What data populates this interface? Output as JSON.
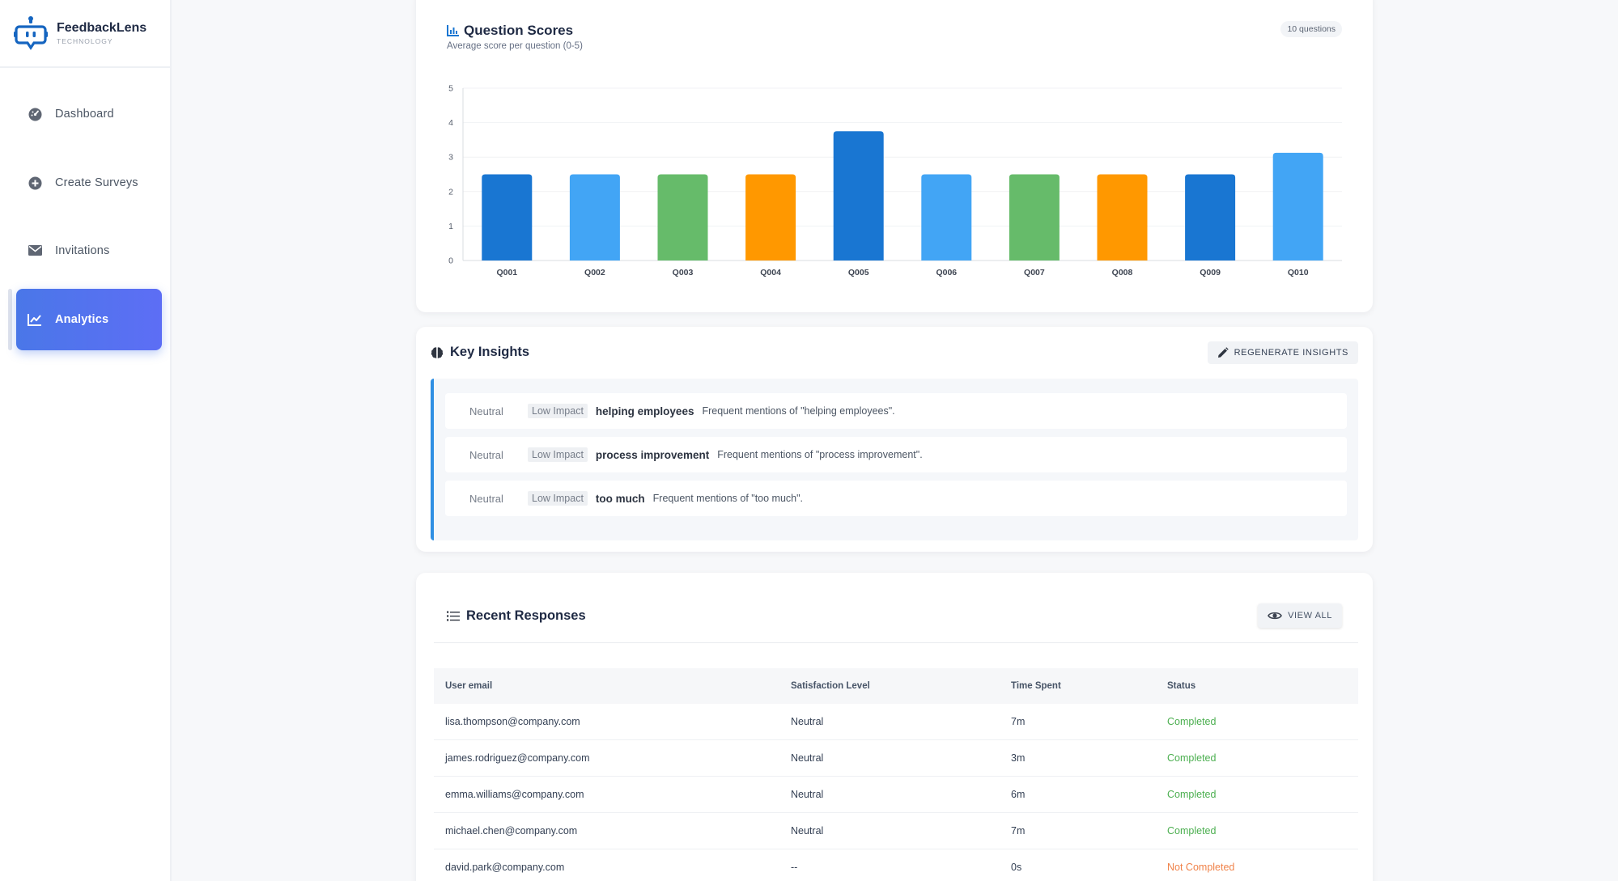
{
  "brand": {
    "name": "FeedbackLens",
    "sub": "TECHNOLOGY"
  },
  "nav": {
    "items": [
      {
        "label": "Dashboard",
        "icon": "dashboard-icon"
      },
      {
        "label": "Create Surveys",
        "icon": "add-circle-icon"
      },
      {
        "label": "Invitations",
        "icon": "envelope-icon"
      },
      {
        "label": "Analytics",
        "icon": "line-chart-icon",
        "active": true
      }
    ]
  },
  "scores": {
    "title": "Question Scores",
    "subtitle": "Average score per question (0-5)",
    "badge": "10 questions"
  },
  "chart_data": {
    "type": "bar",
    "categories": [
      "Q001",
      "Q002",
      "Q003",
      "Q004",
      "Q005",
      "Q006",
      "Q007",
      "Q008",
      "Q009",
      "Q010"
    ],
    "values": [
      2.5,
      2.5,
      2.5,
      2.5,
      3.75,
      2.5,
      2.5,
      2.5,
      2.5,
      3.125
    ],
    "colors": [
      "#1976d2",
      "#42a5f5",
      "#66bb6a",
      "#ff9800",
      "#1976d2",
      "#42a5f5",
      "#66bb6a",
      "#ff9800",
      "#1976d2",
      "#42a5f5"
    ],
    "ylim": [
      0,
      5
    ],
    "yticks": [
      0,
      1,
      2,
      3,
      4,
      5
    ],
    "grid": true,
    "title": "",
    "xlabel": "",
    "ylabel": ""
  },
  "insights": {
    "title": "Key Insights",
    "regenerate_label": "REGENERATE INSIGHTS",
    "items": [
      {
        "sentiment": "Neutral",
        "impact": "Low Impact",
        "topic": "helping employees",
        "description": "Frequent mentions of \"helping employees\"."
      },
      {
        "sentiment": "Neutral",
        "impact": "Low Impact",
        "topic": "process improvement",
        "description": "Frequent mentions of \"process improvement\"."
      },
      {
        "sentiment": "Neutral",
        "impact": "Low Impact",
        "topic": "too much",
        "description": "Frequent mentions of \"too much\"."
      }
    ]
  },
  "responses": {
    "title": "Recent Responses",
    "view_all_label": "VIEW ALL",
    "columns": [
      "User email",
      "Satisfaction Level",
      "Time Spent",
      "Status"
    ],
    "rows": [
      {
        "email": "lisa.thompson@company.com",
        "level": "Neutral",
        "time": "7m",
        "status": "Completed"
      },
      {
        "email": "james.rodriguez@company.com",
        "level": "Neutral",
        "time": "3m",
        "status": "Completed"
      },
      {
        "email": "emma.williams@company.com",
        "level": "Neutral",
        "time": "6m",
        "status": "Completed"
      },
      {
        "email": "michael.chen@company.com",
        "level": "Neutral",
        "time": "7m",
        "status": "Completed"
      },
      {
        "email": "david.park@company.com",
        "level": "--",
        "time": "0s",
        "status": "Not Completed"
      }
    ]
  }
}
